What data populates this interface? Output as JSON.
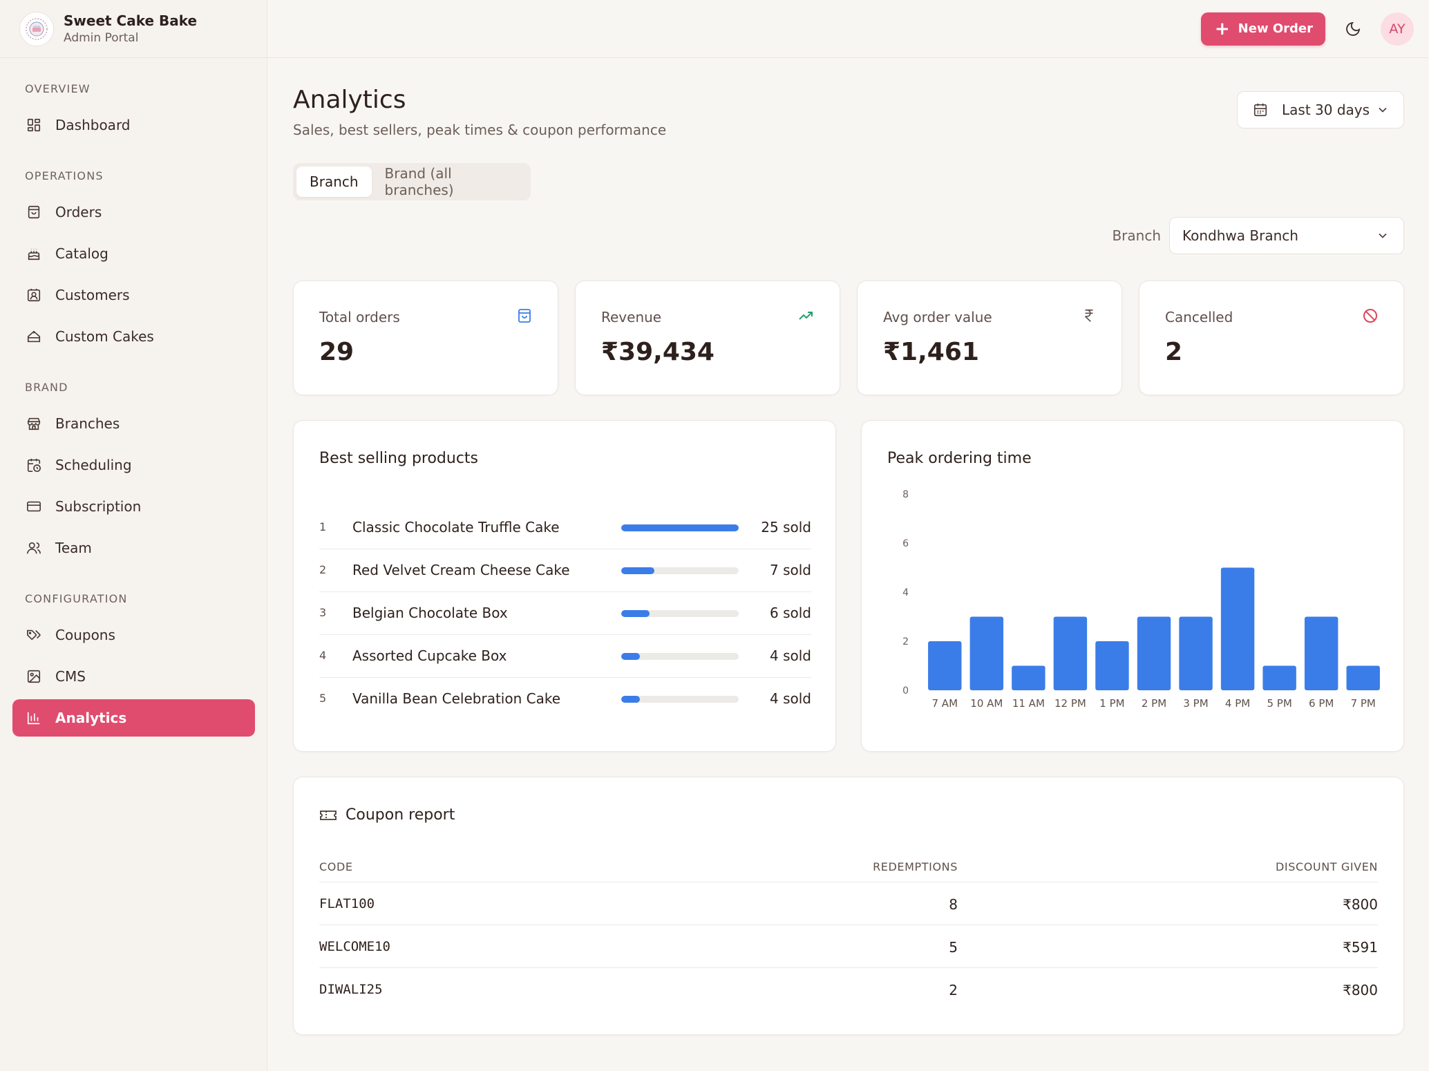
{
  "brand": {
    "name": "Sweet Cake Bake",
    "subtitle": "Admin Portal"
  },
  "sidebar": {
    "sections": [
      {
        "label": "OVERVIEW",
        "items": [
          {
            "label": "Dashboard",
            "icon": "dashboard-icon"
          }
        ]
      },
      {
        "label": "OPERATIONS",
        "items": [
          {
            "label": "Orders",
            "icon": "shopping-bag-icon"
          },
          {
            "label": "Catalog",
            "icon": "cake-icon"
          },
          {
            "label": "Customers",
            "icon": "contact-icon"
          },
          {
            "label": "Custom Cakes",
            "icon": "cake-slice-icon"
          }
        ]
      },
      {
        "label": "BRAND",
        "items": [
          {
            "label": "Branches",
            "icon": "store-icon"
          },
          {
            "label": "Scheduling",
            "icon": "calendar-clock-icon"
          },
          {
            "label": "Subscription",
            "icon": "credit-card-icon"
          },
          {
            "label": "Team",
            "icon": "users-icon"
          }
        ]
      },
      {
        "label": "CONFIGURATION",
        "items": [
          {
            "label": "Coupons",
            "icon": "tags-icon"
          },
          {
            "label": "CMS",
            "icon": "image-icon"
          },
          {
            "label": "Analytics",
            "icon": "bar-chart-icon",
            "active": true
          }
        ]
      }
    ]
  },
  "topbar": {
    "new_order_label": "New Order",
    "avatar_initials": "AY"
  },
  "page": {
    "title": "Analytics",
    "subtitle": "Sales, best sellers, peak times & coupon performance",
    "date_range": "Last 30 days"
  },
  "tabs": [
    {
      "label": "Branch",
      "active": true
    },
    {
      "label": "Brand (all branches)",
      "active": false
    }
  ],
  "branch_filter": {
    "label": "Branch",
    "value": "Kondhwa Branch"
  },
  "stats": [
    {
      "label": "Total orders",
      "value": "29",
      "icon": "shopping-bag-icon",
      "color": "#3b7de8"
    },
    {
      "label": "Revenue",
      "value": "₹39,434",
      "icon": "trending-up-icon",
      "color": "#22a06b"
    },
    {
      "label": "Avg order value",
      "value": "₹1,461",
      "icon": "rupee-icon",
      "color": "#6d5e58"
    },
    {
      "label": "Cancelled",
      "value": "2",
      "icon": "ban-icon",
      "color": "#e0445a"
    }
  ],
  "best_sellers": {
    "title": "Best selling products",
    "items": [
      {
        "rank": "1",
        "name": "Classic Chocolate Truffle Cake",
        "sold": "25 sold",
        "count": 25
      },
      {
        "rank": "2",
        "name": "Red Velvet Cream Cheese Cake",
        "sold": "7 sold",
        "count": 7
      },
      {
        "rank": "3",
        "name": "Belgian Chocolate Box",
        "sold": "6 sold",
        "count": 6
      },
      {
        "rank": "4",
        "name": "Assorted Cupcake Box",
        "sold": "4 sold",
        "count": 4
      },
      {
        "rank": "5",
        "name": "Vanilla Bean Celebration Cake",
        "sold": "4 sold",
        "count": 4
      }
    ]
  },
  "peak_times": {
    "title": "Peak ordering time"
  },
  "chart_data": {
    "type": "bar",
    "title": "Peak ordering time",
    "categories": [
      "7 AM",
      "10 AM",
      "11 AM",
      "12 PM",
      "1 PM",
      "2 PM",
      "3 PM",
      "4 PM",
      "5 PM",
      "6 PM",
      "7 PM"
    ],
    "values": [
      2,
      3,
      1,
      3,
      2,
      3,
      3,
      5,
      1,
      3,
      1
    ],
    "yticks": [
      0,
      2,
      4,
      6,
      8
    ],
    "ylim": [
      0,
      8
    ],
    "color": "#3b7de8"
  },
  "coupons": {
    "title": "Coupon report",
    "headers": {
      "code": "CODE",
      "redemptions": "REDEMPTIONS",
      "discount": "DISCOUNT GIVEN"
    },
    "rows": [
      {
        "code": "FLAT100",
        "redemptions": "8",
        "discount": "₹800"
      },
      {
        "code": "WELCOME10",
        "redemptions": "5",
        "discount": "₹591"
      },
      {
        "code": "DIWALI25",
        "redemptions": "2",
        "discount": "₹800"
      }
    ]
  }
}
